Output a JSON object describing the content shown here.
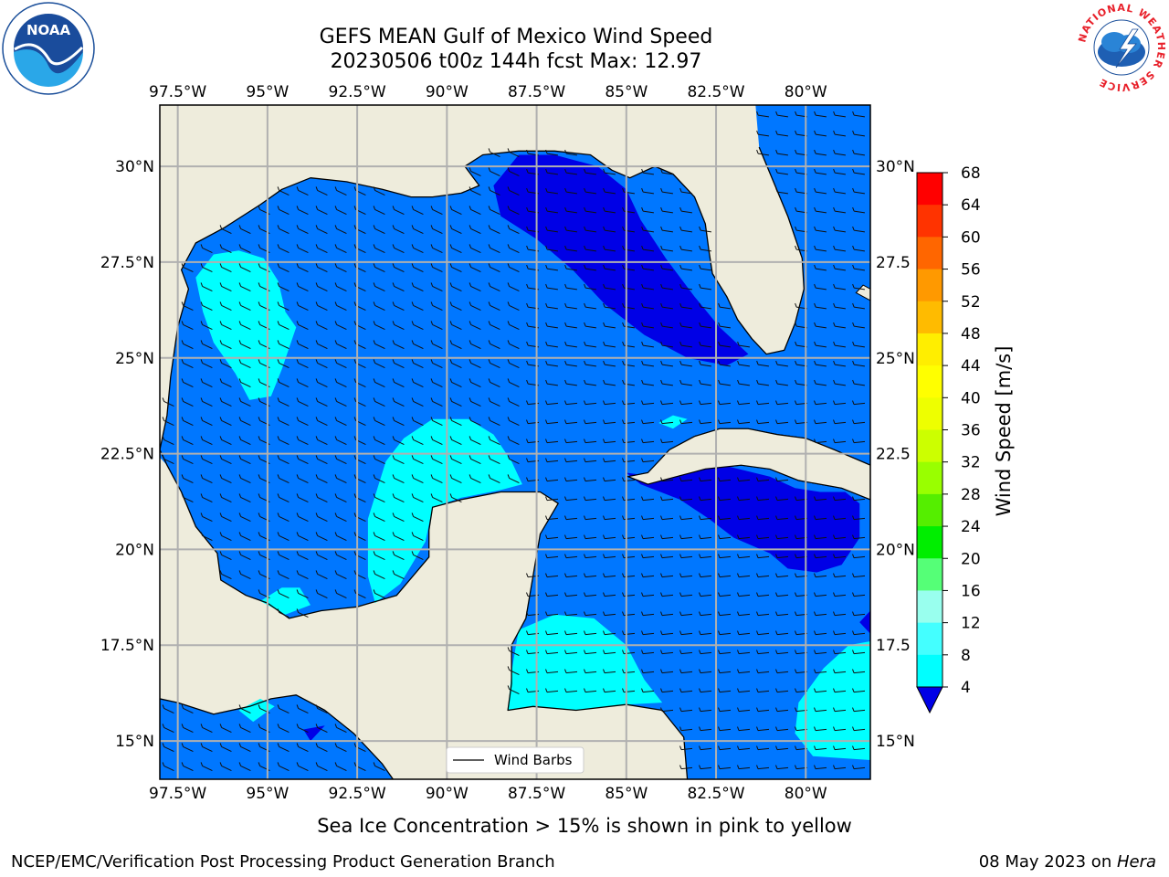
{
  "title": {
    "line1": "GEFS MEAN Gulf of Mexico Wind Speed",
    "line2": "20230506 t00z 144h fcst   Max: 12.97"
  },
  "map": {
    "lon_ticks": [
      "97.5°W",
      "95°W",
      "92.5°W",
      "90°W",
      "87.5°W",
      "85°W",
      "82.5°W",
      "80°W"
    ],
    "lat_ticks_left": [
      "30°N",
      "27.5°N",
      "25°N",
      "22.5°N",
      "20°N",
      "17.5°N",
      "15°N"
    ],
    "lat_ticks_right": [
      "30°N",
      "27.5",
      "25°N",
      "22.5",
      "20°N",
      "17.5",
      "15°N"
    ],
    "lon_range": [
      -98,
      -78.2
    ],
    "lat_range": [
      14.0,
      31.6
    ],
    "legend_label": "Wind Barbs",
    "colors": {
      "land": "#eeecdc",
      "speed_4_8": "#0077ff",
      "speed_8_12": "#00ffff",
      "speed_0_4": "#0000e6",
      "grid": "#b0b0b0"
    }
  },
  "colorbar": {
    "label": "Wind Speed [m/s]",
    "ticks": [
      "68",
      "64",
      "60",
      "56",
      "52",
      "48",
      "44",
      "40",
      "36",
      "32",
      "28",
      "24",
      "20",
      "16",
      "12",
      "8",
      "4"
    ],
    "colors": [
      "#ff0000",
      "#ff2a00",
      "#ff5500",
      "#ff8000",
      "#ffaa00",
      "#ffcc00",
      "#ffee00",
      "#ffff00",
      "#eaff00",
      "#ccff00",
      "#aaff00",
      "#55ee00",
      "#00ee00",
      "#55ff77",
      "#99ffee",
      "#44ffff",
      "#00ffff",
      "#0077ff"
    ],
    "extend_color": "#0000e6"
  },
  "footer": {
    "ice_note": "Sea Ice Concentration > 15% is shown in pink to yellow",
    "credit": "NCEP/EMC/Verification Post Processing Product Generation Branch",
    "date": "08 May 2023 on ",
    "machine": "Hera"
  },
  "logos": {
    "noaa": "NOAA",
    "nws_ring": "NATIONAL WEATHER SERVICE"
  }
}
